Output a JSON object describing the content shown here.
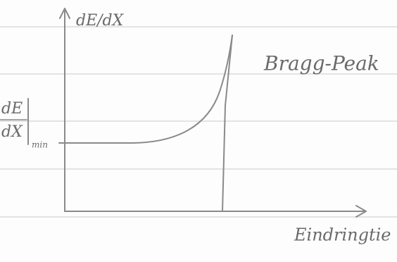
{
  "y_axis_label": "dE/dX",
  "x_axis_label": "Eindringtie",
  "annotation": "Bragg-Peak",
  "min_label": {
    "numerator": "dE",
    "denominator": "dX",
    "subscript": "min"
  }
}
